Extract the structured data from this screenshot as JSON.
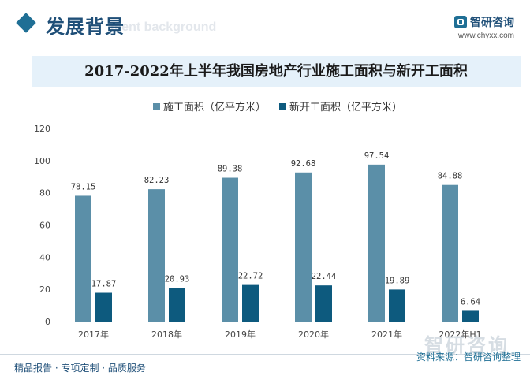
{
  "header": {
    "section_title": "发展背景",
    "section_watermark": "ment background",
    "logo_name": "智研咨询",
    "logo_url": "www.chyxx.com"
  },
  "chart_data": {
    "type": "bar",
    "title": "2017-2022年上半年我国房地产行业施工面积与新开工面积",
    "categories": [
      "2017年",
      "2018年",
      "2019年",
      "2020年",
      "2021年",
      "2022年H1"
    ],
    "series": [
      {
        "name": "施工面积（亿平方米）",
        "color": "#5b8fa8",
        "values": [
          78.15,
          82.23,
          89.38,
          92.68,
          97.54,
          84.88
        ]
      },
      {
        "name": "新开工面积（亿平方米）",
        "color": "#0d5a7e",
        "values": [
          17.87,
          20.93,
          22.72,
          22.44,
          19.89,
          6.64
        ]
      }
    ],
    "ylim": [
      0,
      120
    ],
    "yticks": [
      0,
      20,
      40,
      60,
      80,
      100,
      120
    ],
    "legend_position": "top-center",
    "grid": false
  },
  "footer": {
    "tagline": "精品报告 · 专项定制 · 品质服务",
    "source": "资料来源：智研咨询整理",
    "watermark": "智研咨询"
  }
}
